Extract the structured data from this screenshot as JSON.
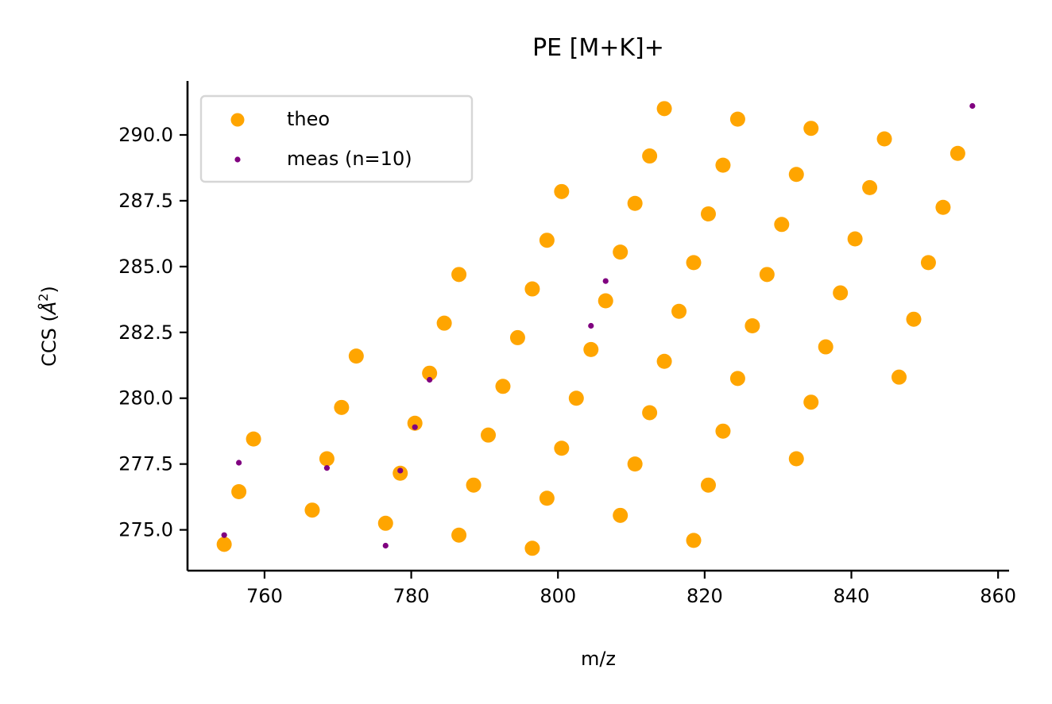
{
  "chart_data": {
    "type": "scatter",
    "title": "PE [M+K]+",
    "xlabel": "m/z",
    "ylabel_main": "CCS (",
    "ylabel_unit": "Å",
    "ylabel_sup": "2",
    "ylabel_end": ")",
    "xlim": [
      749.5,
      861.5
    ],
    "ylim": [
      273.45,
      292.05
    ],
    "xticks": [
      760,
      780,
      800,
      820,
      840,
      860
    ],
    "xtick_labels": [
      "760",
      "780",
      "800",
      "820",
      "840",
      "860"
    ],
    "yticks": [
      275.0,
      277.5,
      280.0,
      282.5,
      285.0,
      287.5,
      290.0
    ],
    "ytick_labels": [
      "275.0",
      "277.5",
      "280.0",
      "282.5",
      "285.0",
      "287.5",
      "290.0"
    ],
    "grid": false,
    "legend_position": "top-left",
    "series": [
      {
        "name": "theo",
        "color": "#FFA500",
        "x": [
          754.5,
          756.5,
          758.5,
          766.5,
          768.5,
          770.5,
          772.5,
          776.5,
          778.5,
          780.5,
          782.5,
          784.5,
          786.5,
          786.5,
          788.5,
          790.5,
          792.5,
          794.5,
          796.5,
          796.5,
          798.5,
          798.5,
          800.5,
          800.5,
          802.5,
          804.5,
          806.5,
          808.5,
          808.5,
          810.5,
          810.5,
          812.5,
          812.5,
          814.5,
          814.5,
          816.5,
          818.5,
          818.5,
          820.5,
          820.5,
          822.5,
          822.5,
          824.5,
          824.5,
          826.5,
          828.5,
          830.5,
          832.5,
          832.5,
          834.5,
          834.5,
          836.5,
          838.5,
          840.5,
          842.5,
          844.5,
          846.5,
          848.5,
          850.5,
          852.5,
          854.5
        ],
        "y": [
          274.45,
          276.45,
          278.45,
          275.75,
          277.7,
          279.65,
          281.6,
          275.25,
          277.15,
          279.05,
          280.95,
          282.85,
          284.7,
          274.8,
          276.7,
          278.6,
          280.45,
          282.3,
          284.15,
          274.3,
          276.2,
          286.0,
          278.1,
          287.85,
          280.0,
          281.85,
          283.7,
          275.55,
          285.55,
          277.5,
          287.4,
          279.45,
          289.2,
          281.4,
          291.0,
          283.3,
          274.6,
          285.15,
          276.7,
          287.0,
          278.75,
          288.85,
          280.75,
          290.6,
          282.75,
          284.7,
          286.6,
          277.7,
          288.5,
          279.85,
          290.25,
          281.95,
          284.0,
          286.05,
          288.0,
          289.85,
          280.8,
          283.0,
          285.15,
          287.25,
          289.3
        ]
      },
      {
        "name": "meas (n=10)",
        "color": "#800080",
        "x": [
          754.5,
          756.5,
          768.5,
          776.5,
          778.5,
          780.5,
          782.5,
          804.5,
          806.5,
          856.5
        ],
        "y": [
          274.8,
          277.55,
          277.35,
          274.4,
          277.25,
          278.9,
          280.7,
          282.75,
          284.45,
          291.1
        ]
      }
    ]
  }
}
